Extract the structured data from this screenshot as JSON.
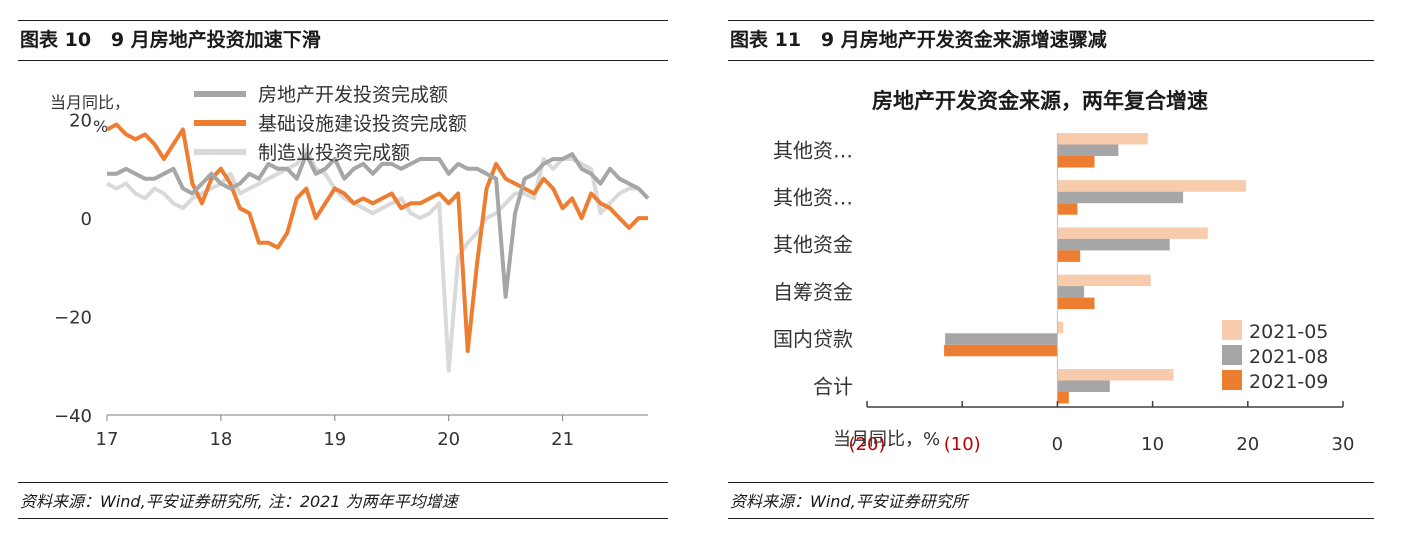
{
  "left_panel": {
    "figure_title": "图表 10   9 月房地产投资加速下滑",
    "source": "资料来源：Wind,平安证券研究所, 注：2021 为两年平均增速"
  },
  "right_panel": {
    "figure_title": "图表 11   9 月房地产开发资金来源增速骤减",
    "source": "资料来源：Wind,平安证券研究所"
  },
  "chart_data": [
    {
      "type": "line",
      "ylabel_line1": "当月同比，",
      "ylabel_line2": "%",
      "ylim": [
        -40,
        25
      ],
      "yticks": [
        20,
        0,
        -20,
        -40
      ],
      "ytick_labels": [
        "20",
        "0",
        "−20",
        "−40"
      ],
      "xlim": [
        0,
        57
      ],
      "xticks": [
        0,
        12,
        24,
        36,
        48
      ],
      "xtick_labels": [
        "17",
        "18",
        "19",
        "20",
        "21"
      ],
      "grid": false,
      "legend_position": "top",
      "series": [
        {
          "name": "房地产开发投资完成额",
          "color": "#a6a6a6",
          "values": [
            9,
            9,
            10,
            9,
            8,
            8,
            9,
            10,
            6,
            5,
            7,
            9,
            7,
            6,
            7,
            9,
            8,
            11,
            10,
            10,
            8,
            13,
            9,
            10,
            12,
            8,
            10,
            11,
            9,
            11,
            11,
            10,
            11,
            12,
            12,
            12,
            9,
            11,
            10,
            10,
            9,
            8,
            -16,
            1,
            8,
            9,
            11,
            12,
            12,
            13,
            10,
            9,
            7,
            10,
            8,
            7,
            6,
            4
          ]
        },
        {
          "name": "基础设施建设投资完成额",
          "color": "#ed7d31",
          "values": [
            18,
            19,
            17,
            16,
            17,
            15,
            12,
            15,
            18,
            7,
            3,
            8,
            10,
            7,
            2,
            1,
            -5,
            -5,
            -6,
            -3,
            4,
            6,
            0,
            3,
            6,
            5,
            3,
            4,
            3,
            4,
            5,
            2,
            3,
            3,
            4,
            5,
            3,
            5,
            -27,
            -9,
            6,
            11,
            8,
            7,
            6,
            5,
            8,
            6,
            2,
            4,
            0,
            5,
            3,
            2,
            0,
            -2,
            0,
            0
          ]
        },
        {
          "name": "制造业投资完成额",
          "color": "#d9d9d9",
          "values": [
            7,
            6,
            7,
            5,
            4,
            6,
            5,
            3,
            2,
            4,
            5,
            6,
            7,
            9,
            5,
            6,
            7,
            8,
            9,
            10,
            11,
            14,
            10,
            9,
            6,
            4,
            3,
            2,
            1,
            2,
            3,
            4,
            1,
            0,
            1,
            3,
            -31,
            -8,
            -5,
            -3,
            0,
            1,
            3,
            5,
            5,
            4,
            12,
            10,
            12,
            12,
            11,
            10,
            1,
            3,
            5,
            6,
            6,
            4
          ]
        }
      ]
    },
    {
      "type": "bar",
      "orientation": "horizontal",
      "title": "房地产开发资金来源，两年复合增速",
      "categories": [
        "其他资…",
        "其他资…",
        "其他资金",
        "自筹资金",
        "国内贷款",
        "合计"
      ],
      "xlim": [
        -20,
        30
      ],
      "xticks": [
        -20,
        -10,
        0,
        10,
        20,
        30
      ],
      "xtick_labels": [
        "(20)",
        "(10)",
        "0",
        "10",
        "20",
        "30"
      ],
      "xlabel": "当月同比，%",
      "grid": false,
      "legend_position": "bottom-right",
      "series": [
        {
          "name": "2021-05",
          "color": "#f8cbad",
          "values": [
            9.5,
            19.8,
            15.8,
            9.8,
            0.6,
            12.2
          ]
        },
        {
          "name": "2021-08",
          "color": "#a6a6a6",
          "values": [
            6.4,
            13.2,
            11.8,
            2.8,
            -11.8,
            5.5
          ]
        },
        {
          "name": "2021-09",
          "color": "#ed7d31",
          "values": [
            3.9,
            2.1,
            2.4,
            3.9,
            -11.9,
            1.2
          ]
        }
      ]
    }
  ]
}
